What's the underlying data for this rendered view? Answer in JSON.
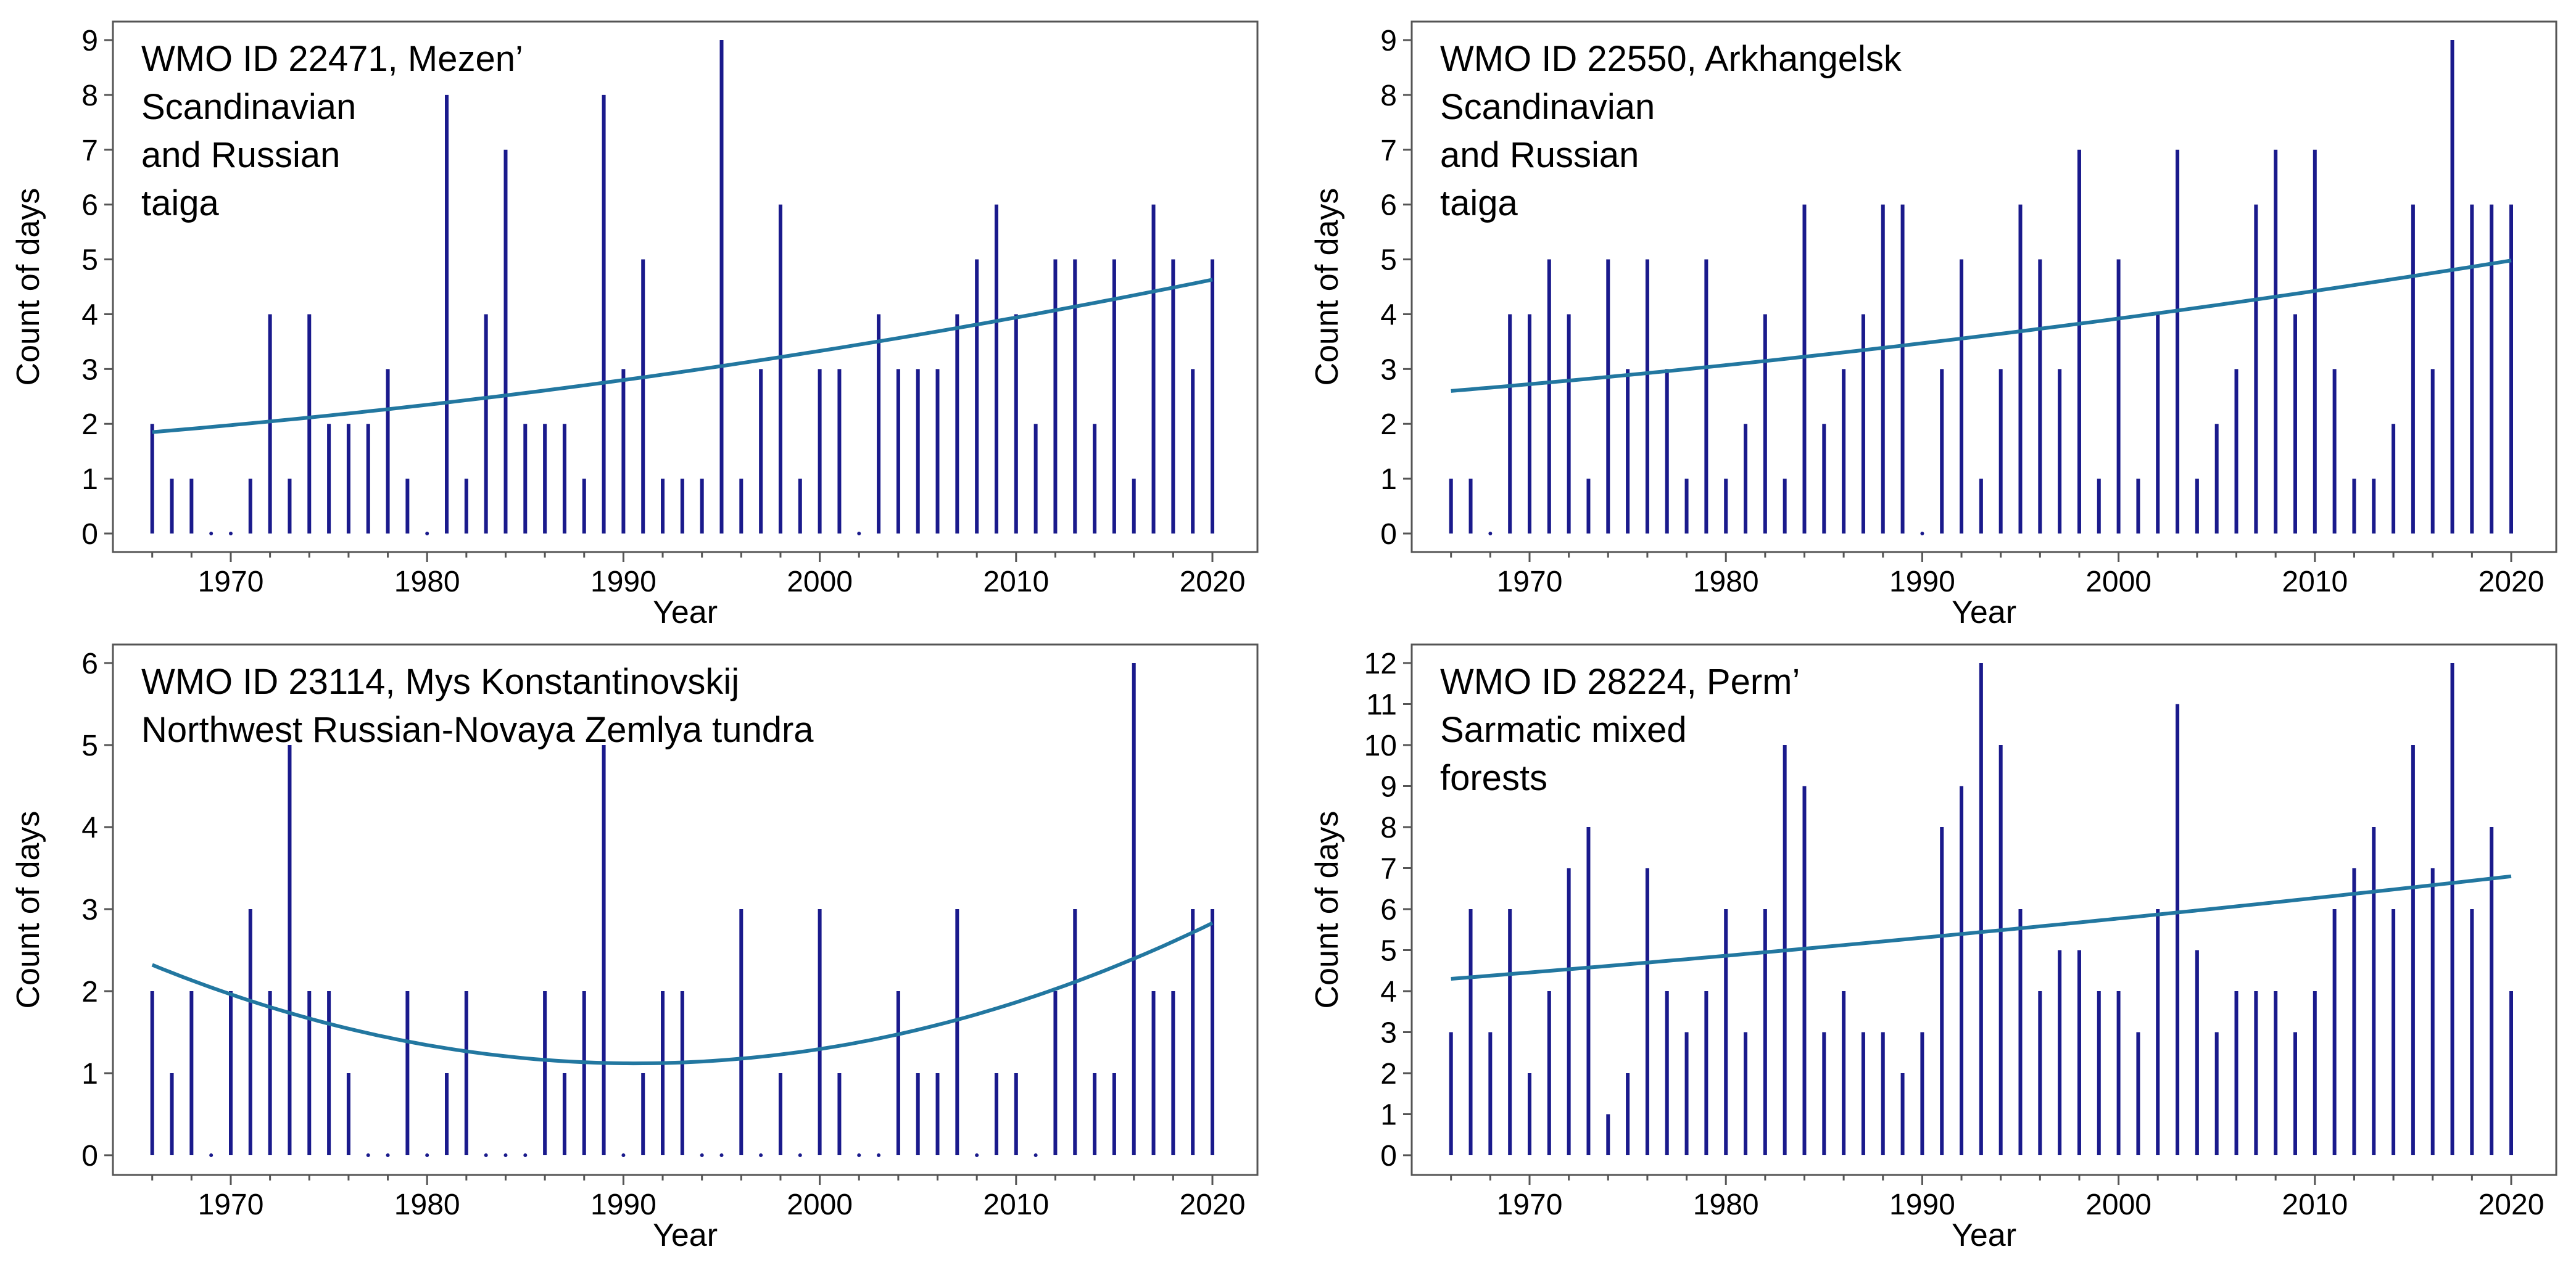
{
  "chart_data": [
    {
      "type": "bar",
      "panel": "top-left",
      "annotation": [
        "WMO ID 22471, Mezen’",
        "Scandinavian",
        "and Russian",
        "taiga"
      ],
      "xlabel": "Year",
      "ylabel": "Count of days",
      "xlim": [
        1966,
        2020
      ],
      "ylim": [
        0,
        9
      ],
      "xticks": [
        1970,
        1980,
        1990,
        2000,
        2010,
        2020
      ],
      "yticks": [
        0,
        1,
        2,
        3,
        4,
        5,
        6,
        7,
        8,
        9
      ],
      "x": [
        1966,
        1967,
        1968,
        1969,
        1970,
        1971,
        1972,
        1973,
        1974,
        1975,
        1976,
        1977,
        1978,
        1979,
        1980,
        1981,
        1982,
        1983,
        1984,
        1985,
        1986,
        1987,
        1988,
        1989,
        1990,
        1991,
        1992,
        1993,
        1994,
        1995,
        1996,
        1997,
        1998,
        1999,
        2000,
        2001,
        2002,
        2003,
        2004,
        2005,
        2006,
        2007,
        2008,
        2009,
        2010,
        2011,
        2012,
        2013,
        2014,
        2015,
        2016,
        2017,
        2018,
        2019,
        2020
      ],
      "values": [
        2,
        1,
        1,
        0,
        0,
        1,
        4,
        1,
        4,
        2,
        2,
        2,
        3,
        1,
        0,
        8,
        1,
        4,
        7,
        2,
        2,
        2,
        1,
        8,
        3,
        5,
        1,
        1,
        1,
        9,
        1,
        3,
        6,
        1,
        3,
        3,
        0,
        4,
        3,
        3,
        3,
        4,
        5,
        6,
        4,
        2,
        5,
        5,
        2,
        5,
        1,
        6,
        5,
        3,
        5
      ],
      "trend": {
        "type": "quadratic",
        "x": [
          1966,
          1993,
          2020
        ],
        "y": [
          1.85,
          2.95,
          4.63
        ]
      }
    },
    {
      "type": "bar",
      "panel": "top-right",
      "annotation": [
        "WMO ID 22550, Arkhangelsk",
        "Scandinavian",
        "and Russian",
        "taiga"
      ],
      "xlabel": "Year",
      "ylabel": "Count of days",
      "xlim": [
        1966,
        2020
      ],
      "ylim": [
        0,
        9
      ],
      "xticks": [
        1970,
        1980,
        1990,
        2000,
        2010,
        2020
      ],
      "yticks": [
        0,
        1,
        2,
        3,
        4,
        5,
        6,
        7,
        8,
        9
      ],
      "x": [
        1966,
        1967,
        1968,
        1969,
        1970,
        1971,
        1972,
        1973,
        1974,
        1975,
        1976,
        1977,
        1978,
        1979,
        1980,
        1981,
        1982,
        1983,
        1984,
        1985,
        1986,
        1987,
        1988,
        1989,
        1990,
        1991,
        1992,
        1993,
        1994,
        1995,
        1996,
        1997,
        1998,
        1999,
        2000,
        2001,
        2002,
        2003,
        2004,
        2005,
        2006,
        2007,
        2008,
        2009,
        2010,
        2011,
        2012,
        2013,
        2014,
        2015,
        2016,
        2017,
        2018,
        2019,
        2020
      ],
      "values": [
        1,
        1,
        0,
        4,
        4,
        5,
        4,
        1,
        5,
        3,
        5,
        3,
        1,
        5,
        1,
        2,
        4,
        1,
        6,
        2,
        3,
        4,
        6,
        6,
        0,
        3,
        5,
        1,
        3,
        6,
        5,
        3,
        7,
        1,
        5,
        1,
        4,
        7,
        1,
        2,
        3,
        6,
        7,
        4,
        7,
        3,
        1,
        1,
        2,
        6,
        3,
        9,
        6,
        6,
        6
      ],
      "trend": {
        "type": "quadratic",
        "x": [
          1966,
          1993,
          2020
        ],
        "y": [
          2.6,
          3.6,
          4.98
        ]
      }
    },
    {
      "type": "bar",
      "panel": "bottom-left",
      "annotation": [
        "WMO ID 23114, Mys Konstantinovskij",
        "Northwest Russian-Novaya Zemlya tundra"
      ],
      "xlabel": "Year",
      "ylabel": "Count of days",
      "xlim": [
        1966,
        2020
      ],
      "ylim": [
        0,
        6
      ],
      "xticks": [
        1970,
        1980,
        1990,
        2000,
        2010,
        2020
      ],
      "yticks": [
        0,
        1,
        2,
        3,
        4,
        5,
        6
      ],
      "x": [
        1966,
        1967,
        1968,
        1969,
        1970,
        1971,
        1972,
        1973,
        1974,
        1975,
        1976,
        1977,
        1978,
        1979,
        1980,
        1981,
        1982,
        1983,
        1984,
        1985,
        1986,
        1987,
        1988,
        1989,
        1990,
        1991,
        1992,
        1993,
        1994,
        1995,
        1996,
        1997,
        1998,
        1999,
        2000,
        2001,
        2002,
        2003,
        2004,
        2005,
        2006,
        2007,
        2008,
        2009,
        2010,
        2011,
        2012,
        2013,
        2014,
        2015,
        2016,
        2017,
        2018,
        2019,
        2020
      ],
      "values": [
        2,
        1,
        2,
        0,
        2,
        3,
        2,
        5,
        2,
        2,
        1,
        0,
        0,
        2,
        0,
        1,
        2,
        0,
        0,
        0,
        2,
        1,
        2,
        5,
        0,
        1,
        2,
        2,
        0,
        0,
        3,
        0,
        1,
        0,
        3,
        1,
        0,
        0,
        2,
        1,
        1,
        3,
        0,
        1,
        1,
        0,
        2,
        3,
        1,
        1,
        6,
        2,
        2,
        3,
        3
      ],
      "trend": {
        "type": "quadratic",
        "x": [
          1966,
          1991,
          2020
        ],
        "y": [
          2.32,
          1.12,
          2.83
        ]
      }
    },
    {
      "type": "bar",
      "panel": "bottom-right",
      "annotation": [
        "WMO ID 28224, Perm’",
        "Sarmatic mixed",
        "forests"
      ],
      "xlabel": "Year",
      "ylabel": "Count of days",
      "xlim": [
        1966,
        2020
      ],
      "ylim": [
        0,
        12
      ],
      "xticks": [
        1970,
        1980,
        1990,
        2000,
        2010,
        2020
      ],
      "yticks": [
        0,
        1,
        2,
        3,
        4,
        5,
        6,
        7,
        8,
        9,
        10,
        11,
        12
      ],
      "x": [
        1966,
        1967,
        1968,
        1969,
        1970,
        1971,
        1972,
        1973,
        1974,
        1975,
        1976,
        1977,
        1978,
        1979,
        1980,
        1981,
        1982,
        1983,
        1984,
        1985,
        1986,
        1987,
        1988,
        1989,
        1990,
        1991,
        1992,
        1993,
        1994,
        1995,
        1996,
        1997,
        1998,
        1999,
        2000,
        2001,
        2002,
        2003,
        2004,
        2005,
        2006,
        2007,
        2008,
        2009,
        2010,
        2011,
        2012,
        2013,
        2014,
        2015,
        2016,
        2017,
        2018,
        2019,
        2020
      ],
      "values": [
        3,
        6,
        3,
        6,
        2,
        4,
        7,
        8,
        1,
        2,
        7,
        4,
        3,
        4,
        6,
        3,
        6,
        10,
        9,
        3,
        4,
        3,
        3,
        2,
        3,
        8,
        9,
        12,
        10,
        6,
        4,
        5,
        5,
        4,
        4,
        3,
        6,
        11,
        5,
        3,
        4,
        4,
        4,
        3,
        4,
        6,
        7,
        8,
        6,
        10,
        7,
        12,
        6,
        8,
        4
      ],
      "trend": {
        "type": "quadratic",
        "x": [
          1966,
          1993,
          2020
        ],
        "y": [
          4.3,
          5.44,
          6.8
        ]
      }
    }
  ]
}
